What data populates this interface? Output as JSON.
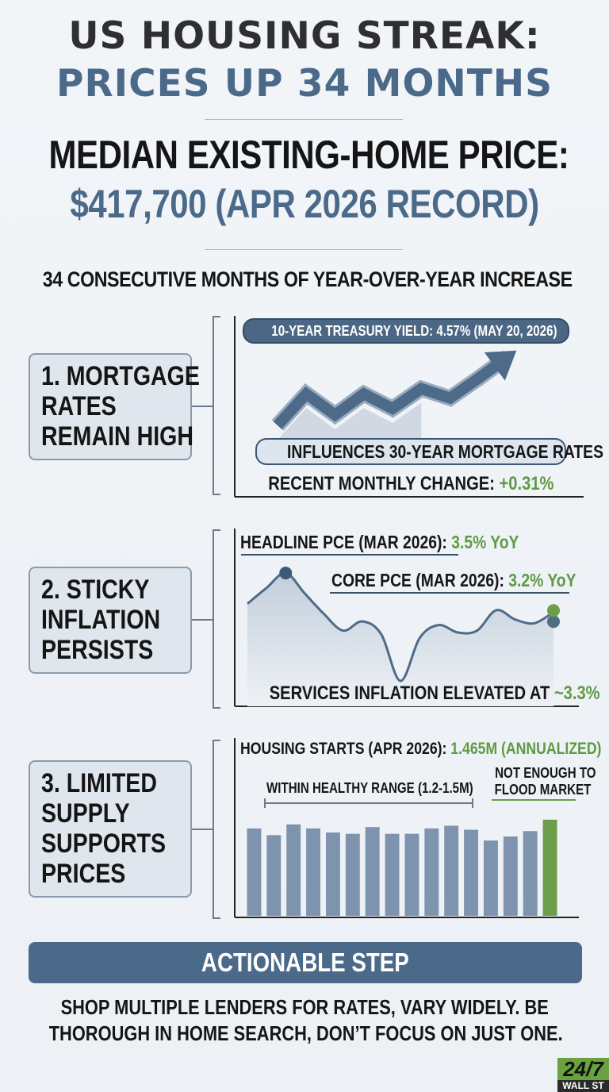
{
  "header": {
    "title_line1": "US HOUSING STREAK:",
    "title_line2": "PRICES UP 34 MONTHS",
    "median_line1": "MEDIAN EXISTING-HOME PRICE:",
    "median_line2": "$417,700 (APR 2026 RECORD)",
    "subtitle": "34 CONSECUTIVE MONTHS OF YEAR-OVER-YEAR INCREASE"
  },
  "sections": [
    {
      "label_lines": [
        "1. MORTGAGE",
        "RATES",
        "REMAIN HIGH"
      ],
      "treasury_label": "10-YEAR TREASURY YIELD: 4.57% (MAY 20, 2026)",
      "influence_label": "INFLUENCES 30-YEAR MORTGAGE RATES",
      "change_prefix": "RECENT MONTHLY CHANGE: ",
      "change_value": "+0.31%"
    },
    {
      "label_lines": [
        "2. STICKY",
        "INFLATION",
        "PERSISTS"
      ],
      "headline_prefix": "HEADLINE PCE (MAR 2026): ",
      "headline_value": "3.5% YoY",
      "core_prefix": "CORE PCE (MAR 2026): ",
      "core_value": "3.2% YoY",
      "services_prefix": "SERVICES INFLATION ELEVATED AT ",
      "services_value": "~3.3%"
    },
    {
      "label_lines": [
        "3. LIMITED",
        "SUPPLY",
        "SUPPORTS",
        "PRICES"
      ],
      "starts_prefix": "HOUSING STARTS (APR 2026): ",
      "starts_value": "1.465M (ANNUALIZED)",
      "range_label": "WITHIN HEALTHY RANGE (1.2-1.5M)",
      "flood_line1": "NOT ENOUGH TO",
      "flood_line2": "FLOOD MARKET"
    }
  ],
  "action": {
    "title": "ACTIONABLE STEP",
    "line1": "SHOP MULTIPLE LENDERS FOR RATES, VARY WIDELY. BE",
    "line2": "THOROUGH IN HOME SEARCH, DON’T FOCUS ON JUST ONE."
  },
  "logo": {
    "line1": "24/7",
    "line2": "WALL ST"
  },
  "colors": {
    "accent_blue": "#4b6a8a",
    "bar_blue": "#7d93ae",
    "highlight_green": "#6a9e4a",
    "dark": "#151515"
  },
  "chart_data": [
    {
      "type": "line",
      "title": "10-YEAR TREASURY YIELD: 4.57% (MAY 20, 2026)",
      "x": [
        0,
        1,
        2,
        3,
        4,
        5,
        6,
        7,
        8
      ],
      "series": [
        {
          "values": [
            0,
            3,
            1,
            3,
            1.6,
            3.5,
            2.6,
            4.5,
            6.5
          ]
        }
      ],
      "annotations": [
        "INFLUENCES 30-YEAR MORTGAGE RATES",
        "RECENT MONTHLY CHANGE: +0.31%"
      ]
    },
    {
      "type": "area",
      "x": [
        0,
        1,
        2,
        3,
        4,
        5,
        6,
        7,
        8,
        9,
        10,
        11,
        12,
        13,
        14,
        15,
        16
      ],
      "series": [
        {
          "values": [
            3.45,
            3.62,
            3.78,
            3.56,
            3.34,
            3.16,
            3.26,
            3.12,
            2.62,
            3.08,
            3.22,
            3.14,
            3.16,
            3.38,
            3.28,
            3.24,
            3.36
          ]
        }
      ],
      "highlights": [
        "HEADLINE PCE (MAR 2026): 3.5% YoY",
        "CORE PCE (MAR 2026): 3.2% YoY"
      ],
      "annotations": [
        "SERVICES INFLATION ELEVATED AT ~3.3%"
      ]
    },
    {
      "type": "bar",
      "title": "HOUSING STARTS (APR 2026): 1.465M (ANNUALIZED)",
      "values": [
        1.4,
        1.35,
        1.43,
        1.4,
        1.37,
        1.36,
        1.41,
        1.36,
        1.36,
        1.4,
        1.42,
        1.39,
        1.31,
        1.34,
        1.38,
        1.465
      ],
      "highlight_index": 15,
      "ylim": [
        0.75,
        1.6
      ],
      "annotations": [
        "WITHIN HEALTHY RANGE (1.2-1.5M)",
        "NOT ENOUGH TO FLOOD MARKET"
      ]
    }
  ]
}
